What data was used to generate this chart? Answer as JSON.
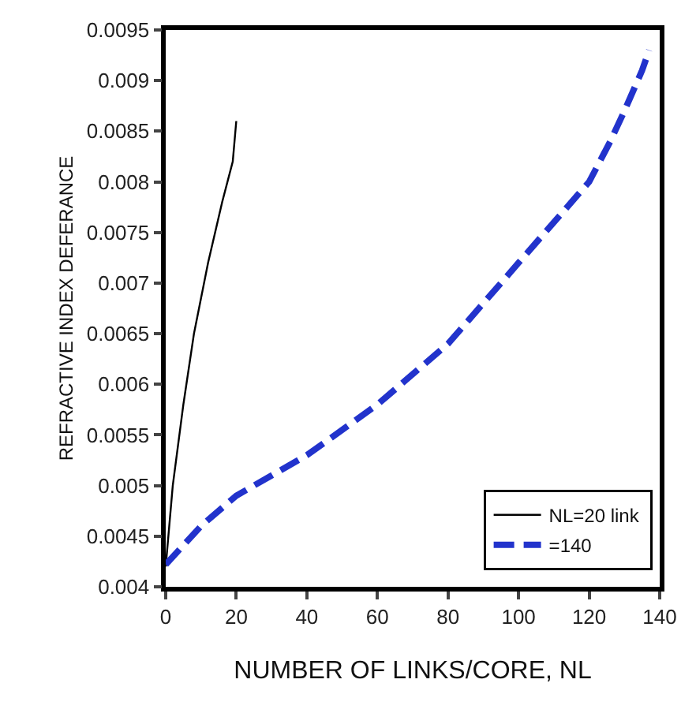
{
  "chart_data": {
    "type": "line",
    "xlabel": "NUMBER OF LINKS/CORE, NL",
    "ylabel": "REFRACTIVE INDEX DEFERANCE",
    "xlim": [
      0,
      140
    ],
    "xticks": [
      0,
      20,
      40,
      60,
      80,
      100,
      120,
      140
    ],
    "ylim": [
      0.004,
      0.0095
    ],
    "yticks": [
      0.004,
      0.0045,
      0.005,
      0.0055,
      0.006,
      0.0065,
      0.007,
      0.0075,
      0.008,
      0.0085,
      0.009,
      0.0095
    ],
    "legend": "bottom right",
    "marker": "none",
    "series": [
      {
        "name": "NL=20 link",
        "color": "#000000",
        "line_style": "solid",
        "x": [
          0,
          2,
          5,
          8,
          12,
          16,
          19,
          20
        ],
        "values": [
          0.0042,
          0.005,
          0.0058,
          0.0065,
          0.0072,
          0.0078,
          0.0082,
          0.0086
        ]
      },
      {
        "name": "=140",
        "color": "#2233cc",
        "line_style": "dashed",
        "x": [
          0,
          10,
          20,
          40,
          60,
          80,
          100,
          110,
          120,
          126,
          130,
          135,
          137
        ],
        "values": [
          0.00422,
          0.0046,
          0.0049,
          0.0053,
          0.0058,
          0.0064,
          0.0072,
          0.0076,
          0.008,
          0.0084,
          0.0087,
          0.0091,
          0.0093
        ]
      }
    ]
  }
}
